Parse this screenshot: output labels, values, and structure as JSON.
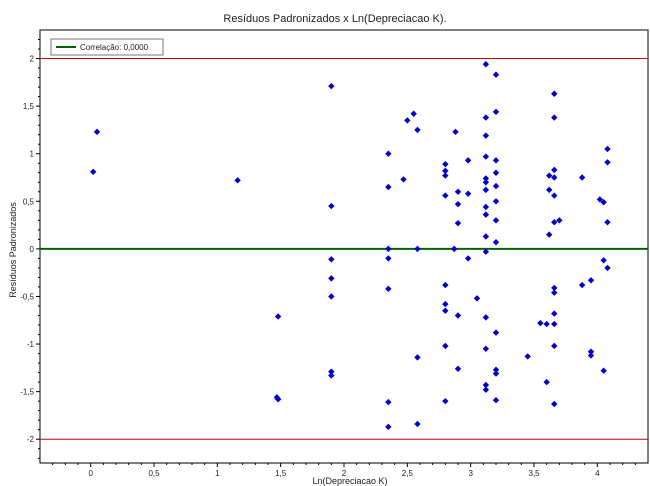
{
  "chart_data": {
    "type": "scatter",
    "title": "Resíduos Padronizados x Ln(Depreciacao K).",
    "xlabel": "Ln(Depreciacao K)",
    "ylabel": "Resíduos Padronizados",
    "xlim": [
      -0.4,
      4.4
    ],
    "ylim": [
      -2.25,
      2.3
    ],
    "xticks": [
      0,
      0.5,
      1,
      1.5,
      2,
      2.5,
      3,
      3.5,
      4
    ],
    "xtick_labels": [
      "0",
      "0,5",
      "1",
      "1,5",
      "2",
      "2,5",
      "3",
      "3,5",
      "4"
    ],
    "yticks": [
      -2,
      -1.5,
      -1,
      -0.5,
      0,
      0.5,
      1,
      1.5,
      2
    ],
    "ytick_labels": [
      "-2",
      "-1,5",
      "-1",
      "-0,5",
      "0",
      "0,5",
      "1",
      "1,5",
      "2"
    ],
    "grid": false,
    "legend_position": "top-left",
    "legend": [
      {
        "name": "Correlação: 0,0000",
        "color": "#006400"
      }
    ],
    "reference_lines": [
      {
        "y": 0,
        "color": "#006400"
      },
      {
        "y": 2,
        "color": "#cc0000"
      },
      {
        "y": -2,
        "color": "#cc0000"
      }
    ],
    "series": [
      {
        "marker": "diamond",
        "color": "#0000cc",
        "points": [
          [
            0.02,
            0.81
          ],
          [
            0.05,
            1.23
          ],
          [
            1.16,
            0.72
          ],
          [
            1.48,
            -0.71
          ],
          [
            1.47,
            -1.56
          ],
          [
            1.48,
            -1.58
          ],
          [
            1.9,
            1.71
          ],
          [
            1.9,
            0.45
          ],
          [
            1.9,
            -0.11
          ],
          [
            1.9,
            -0.31
          ],
          [
            1.9,
            -0.5
          ],
          [
            1.9,
            -1.29
          ],
          [
            1.9,
            -1.33
          ],
          [
            2.35,
            1.0
          ],
          [
            2.35,
            0.65
          ],
          [
            2.35,
            0.0
          ],
          [
            2.35,
            -0.1
          ],
          [
            2.35,
            -0.42
          ],
          [
            2.35,
            -1.61
          ],
          [
            2.35,
            -1.87
          ],
          [
            2.47,
            0.73
          ],
          [
            2.5,
            1.35
          ],
          [
            2.55,
            1.42
          ],
          [
            2.58,
            1.25
          ],
          [
            2.58,
            0.0
          ],
          [
            2.58,
            -1.14
          ],
          [
            2.58,
            -1.84
          ],
          [
            2.8,
            0.89
          ],
          [
            2.8,
            0.82
          ],
          [
            2.8,
            0.77
          ],
          [
            2.8,
            0.56
          ],
          [
            2.8,
            -0.38
          ],
          [
            2.8,
            -0.58
          ],
          [
            2.8,
            -0.65
          ],
          [
            2.8,
            -1.02
          ],
          [
            2.8,
            -1.6
          ],
          [
            2.88,
            1.23
          ],
          [
            2.87,
            0.0
          ],
          [
            2.9,
            0.6
          ],
          [
            2.9,
            0.47
          ],
          [
            2.9,
            0.27
          ],
          [
            2.9,
            -0.7
          ],
          [
            2.9,
            -1.26
          ],
          [
            2.98,
            0.93
          ],
          [
            2.98,
            0.58
          ],
          [
            2.98,
            -0.1
          ],
          [
            3.05,
            -0.52
          ],
          [
            3.12,
            1.94
          ],
          [
            3.12,
            1.38
          ],
          [
            3.12,
            1.19
          ],
          [
            3.12,
            0.97
          ],
          [
            3.12,
            0.74
          ],
          [
            3.12,
            0.7
          ],
          [
            3.12,
            0.62
          ],
          [
            3.12,
            0.44
          ],
          [
            3.12,
            0.36
          ],
          [
            3.12,
            0.13
          ],
          [
            3.12,
            -0.03
          ],
          [
            3.12,
            -0.72
          ],
          [
            3.12,
            -1.05
          ],
          [
            3.12,
            -1.43
          ],
          [
            3.12,
            -1.48
          ],
          [
            3.2,
            1.83
          ],
          [
            3.2,
            1.44
          ],
          [
            3.2,
            0.93
          ],
          [
            3.2,
            0.8
          ],
          [
            3.2,
            0.66
          ],
          [
            3.2,
            0.5
          ],
          [
            3.2,
            0.3
          ],
          [
            3.2,
            0.07
          ],
          [
            3.2,
            -0.88
          ],
          [
            3.2,
            -1.27
          ],
          [
            3.2,
            -1.31
          ],
          [
            3.2,
            -1.59
          ],
          [
            3.45,
            -1.13
          ],
          [
            3.55,
            -0.78
          ],
          [
            3.6,
            -0.79
          ],
          [
            3.6,
            -1.4
          ],
          [
            3.62,
            0.77
          ],
          [
            3.62,
            0.62
          ],
          [
            3.62,
            0.15
          ],
          [
            3.66,
            1.63
          ],
          [
            3.66,
            1.38
          ],
          [
            3.66,
            0.83
          ],
          [
            3.66,
            0.75
          ],
          [
            3.66,
            0.56
          ],
          [
            3.66,
            0.28
          ],
          [
            3.66,
            -0.41
          ],
          [
            3.66,
            -0.46
          ],
          [
            3.66,
            -0.68
          ],
          [
            3.66,
            -0.79
          ],
          [
            3.66,
            -1.02
          ],
          [
            3.66,
            -1.63
          ],
          [
            3.7,
            0.3
          ],
          [
            3.88,
            0.75
          ],
          [
            3.88,
            -0.38
          ],
          [
            3.95,
            -0.33
          ],
          [
            3.95,
            -1.08
          ],
          [
            3.95,
            -1.12
          ],
          [
            4.02,
            0.52
          ],
          [
            4.05,
            0.49
          ],
          [
            4.05,
            -0.12
          ],
          [
            4.05,
            -1.28
          ],
          [
            4.08,
            1.05
          ],
          [
            4.08,
            0.91
          ],
          [
            4.08,
            0.28
          ],
          [
            4.08,
            -0.2
          ]
        ]
      }
    ]
  }
}
